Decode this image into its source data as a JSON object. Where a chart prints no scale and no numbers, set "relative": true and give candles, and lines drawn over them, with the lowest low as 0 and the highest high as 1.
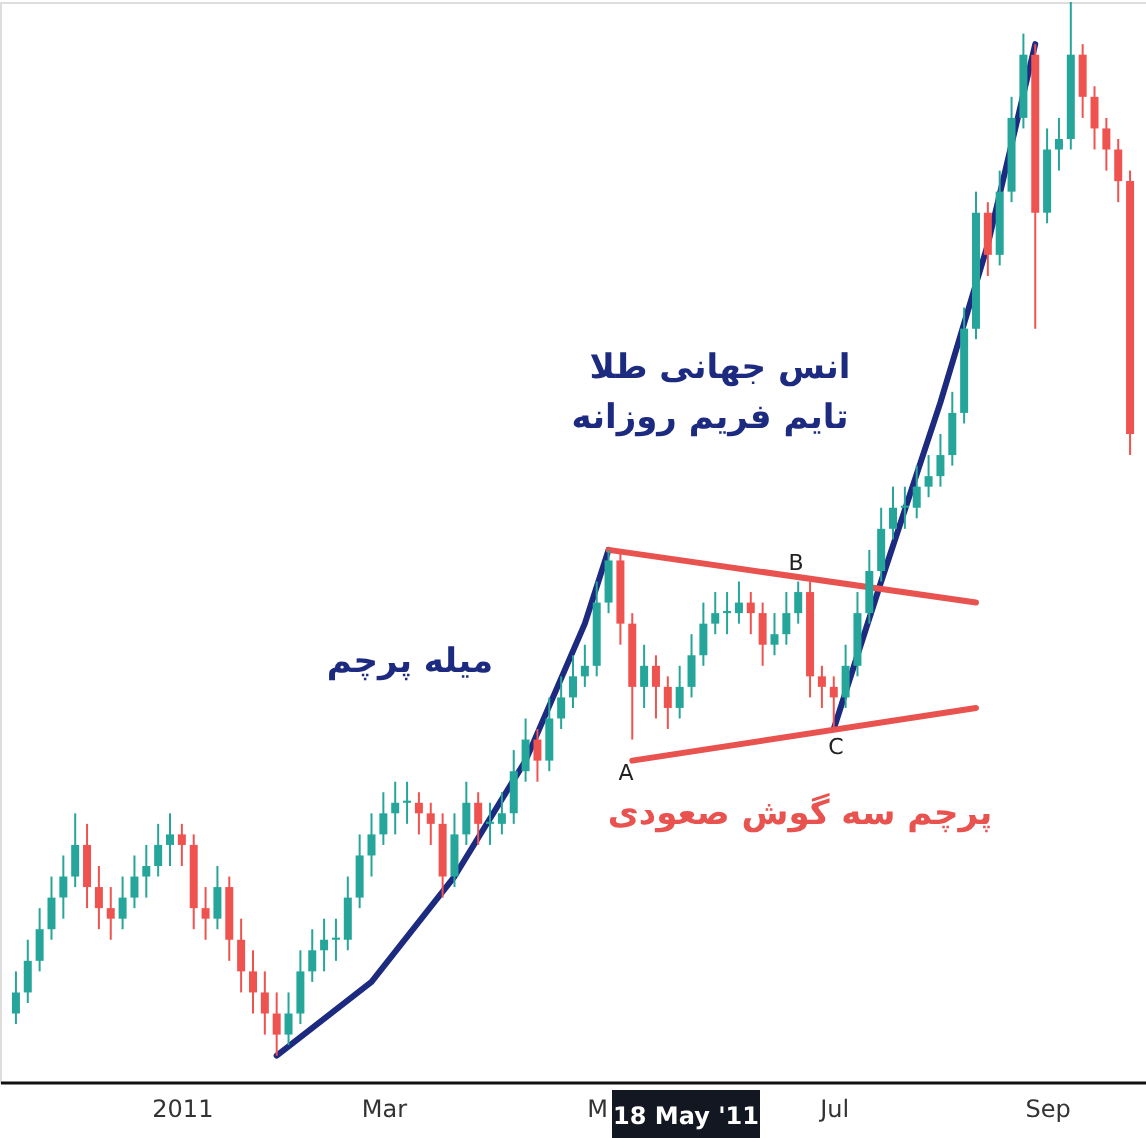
{
  "chart_data": {
    "type": "candlestick",
    "relative": true,
    "categories": [
      null,
      null,
      null,
      null,
      null,
      null,
      null,
      null,
      null,
      null,
      null,
      null,
      null,
      null,
      "2011",
      null,
      null,
      null,
      null,
      null,
      null,
      null,
      null,
      null,
      null,
      null,
      null,
      null,
      null,
      null,
      null,
      "Mar",
      null,
      null,
      null,
      null,
      null,
      null,
      null,
      null,
      null,
      null,
      null,
      null,
      null,
      null,
      null,
      null,
      null,
      "M",
      null,
      null,
      null,
      null,
      null,
      null,
      null,
      null,
      null,
      null,
      null,
      null,
      null,
      null,
      null,
      null,
      null,
      null,
      null,
      "Jul",
      null,
      null,
      null,
      null,
      null,
      null,
      null,
      null,
      null,
      null,
      null,
      null,
      null,
      null,
      null,
      null,
      null,
      "Sep",
      null,
      null,
      null,
      null,
      null,
      null,
      null
    ],
    "ohlc": [
      [
        0.04,
        0.08,
        0.03,
        0.06
      ],
      [
        0.06,
        0.11,
        0.05,
        0.09
      ],
      [
        0.09,
        0.14,
        0.08,
        0.12
      ],
      [
        0.12,
        0.17,
        0.11,
        0.15
      ],
      [
        0.15,
        0.19,
        0.13,
        0.17
      ],
      [
        0.17,
        0.23,
        0.16,
        0.2
      ],
      [
        0.2,
        0.22,
        0.14,
        0.16
      ],
      [
        0.16,
        0.18,
        0.12,
        0.14
      ],
      [
        0.14,
        0.16,
        0.11,
        0.13
      ],
      [
        0.13,
        0.17,
        0.12,
        0.15
      ],
      [
        0.15,
        0.19,
        0.14,
        0.17
      ],
      [
        0.17,
        0.2,
        0.15,
        0.18
      ],
      [
        0.18,
        0.22,
        0.17,
        0.2
      ],
      [
        0.2,
        0.23,
        0.18,
        0.21
      ],
      [
        0.21,
        0.22,
        0.18,
        0.2
      ],
      [
        0.2,
        0.21,
        0.12,
        0.14
      ],
      [
        0.14,
        0.16,
        0.11,
        0.13
      ],
      [
        0.13,
        0.18,
        0.12,
        0.16
      ],
      [
        0.16,
        0.17,
        0.09,
        0.11
      ],
      [
        0.11,
        0.13,
        0.06,
        0.08
      ],
      [
        0.08,
        0.1,
        0.04,
        0.06
      ],
      [
        0.06,
        0.08,
        0.02,
        0.04
      ],
      [
        0.04,
        0.06,
        0.0,
        0.02
      ],
      [
        0.02,
        0.06,
        0.01,
        0.04
      ],
      [
        0.04,
        0.1,
        0.03,
        0.08
      ],
      [
        0.08,
        0.12,
        0.07,
        0.1
      ],
      [
        0.1,
        0.13,
        0.08,
        0.11
      ],
      [
        0.11,
        0.13,
        0.09,
        0.11
      ],
      [
        0.11,
        0.17,
        0.1,
        0.15
      ],
      [
        0.15,
        0.21,
        0.14,
        0.19
      ],
      [
        0.19,
        0.23,
        0.17,
        0.21
      ],
      [
        0.21,
        0.25,
        0.2,
        0.23
      ],
      [
        0.23,
        0.26,
        0.21,
        0.24
      ],
      [
        0.24,
        0.26,
        0.22,
        0.24
      ],
      [
        0.24,
        0.25,
        0.21,
        0.23
      ],
      [
        0.23,
        0.24,
        0.2,
        0.22
      ],
      [
        0.22,
        0.23,
        0.15,
        0.17
      ],
      [
        0.17,
        0.23,
        0.16,
        0.21
      ],
      [
        0.21,
        0.26,
        0.2,
        0.24
      ],
      [
        0.24,
        0.25,
        0.2,
        0.22
      ],
      [
        0.22,
        0.24,
        0.2,
        0.22
      ],
      [
        0.22,
        0.25,
        0.21,
        0.23
      ],
      [
        0.23,
        0.29,
        0.22,
        0.27
      ],
      [
        0.27,
        0.32,
        0.26,
        0.3
      ],
      [
        0.3,
        0.31,
        0.26,
        0.28
      ],
      [
        0.28,
        0.34,
        0.27,
        0.32
      ],
      [
        0.32,
        0.36,
        0.31,
        0.34
      ],
      [
        0.34,
        0.38,
        0.33,
        0.36
      ],
      [
        0.36,
        0.39,
        0.35,
        0.37
      ],
      [
        0.37,
        0.45,
        0.36,
        0.43
      ],
      [
        0.43,
        0.48,
        0.42,
        0.47
      ],
      [
        0.47,
        0.48,
        0.39,
        0.41
      ],
      [
        0.41,
        0.42,
        0.3,
        0.35
      ],
      [
        0.35,
        0.39,
        0.33,
        0.37
      ],
      [
        0.37,
        0.38,
        0.32,
        0.35
      ],
      [
        0.35,
        0.36,
        0.31,
        0.33
      ],
      [
        0.33,
        0.37,
        0.32,
        0.35
      ],
      [
        0.35,
        0.4,
        0.34,
        0.38
      ],
      [
        0.38,
        0.43,
        0.37,
        0.41
      ],
      [
        0.41,
        0.44,
        0.4,
        0.42
      ],
      [
        0.42,
        0.44,
        0.4,
        0.42
      ],
      [
        0.42,
        0.45,
        0.41,
        0.43
      ],
      [
        0.43,
        0.44,
        0.4,
        0.42
      ],
      [
        0.42,
        0.43,
        0.37,
        0.39
      ],
      [
        0.39,
        0.42,
        0.38,
        0.4
      ],
      [
        0.4,
        0.44,
        0.39,
        0.42
      ],
      [
        0.42,
        0.45,
        0.41,
        0.44
      ],
      [
        0.44,
        0.45,
        0.34,
        0.36
      ],
      [
        0.36,
        0.37,
        0.33,
        0.35
      ],
      [
        0.35,
        0.36,
        0.31,
        0.34
      ],
      [
        0.34,
        0.39,
        0.33,
        0.37
      ],
      [
        0.37,
        0.44,
        0.36,
        0.42
      ],
      [
        0.42,
        0.48,
        0.41,
        0.46
      ],
      [
        0.46,
        0.52,
        0.45,
        0.5
      ],
      [
        0.5,
        0.54,
        0.49,
        0.52
      ],
      [
        0.52,
        0.54,
        0.5,
        0.52
      ],
      [
        0.52,
        0.56,
        0.51,
        0.54
      ],
      [
        0.54,
        0.57,
        0.53,
        0.55
      ],
      [
        0.55,
        0.59,
        0.54,
        0.57
      ],
      [
        0.57,
        0.63,
        0.56,
        0.61
      ],
      [
        0.61,
        0.71,
        0.6,
        0.69
      ],
      [
        0.69,
        0.82,
        0.68,
        0.8
      ],
      [
        0.8,
        0.81,
        0.74,
        0.76
      ],
      [
        0.76,
        0.84,
        0.75,
        0.82
      ],
      [
        0.82,
        0.91,
        0.81,
        0.89
      ],
      [
        0.89,
        0.97,
        0.88,
        0.95
      ],
      [
        0.95,
        0.96,
        0.69,
        0.8
      ],
      [
        0.8,
        0.88,
        0.79,
        0.86
      ],
      [
        0.86,
        0.89,
        0.84,
        0.87
      ],
      [
        0.87,
        1.0,
        0.86,
        0.95
      ],
      [
        0.95,
        0.96,
        0.89,
        0.91
      ],
      [
        0.91,
        0.92,
        0.86,
        0.88
      ],
      [
        0.88,
        0.89,
        0.84,
        0.86
      ],
      [
        0.86,
        0.87,
        0.81,
        0.83
      ],
      [
        0.83,
        0.84,
        0.57,
        0.59
      ]
    ],
    "series": [
      {
        "type": "line",
        "color": "#1c2a80",
        "values": [
          null,
          null,
          null,
          null,
          null,
          null,
          null,
          null,
          null,
          null,
          null,
          null,
          null,
          null,
          null,
          null,
          null,
          null,
          null,
          null,
          null,
          null,
          0.0,
          null,
          null,
          null,
          null,
          null,
          null,
          null,
          0.07,
          null,
          null,
          null,
          null,
          null,
          null,
          0.17,
          null,
          null,
          null,
          null,
          null,
          0.28,
          null,
          null,
          null,
          null,
          0.41,
          null,
          0.48,
          null,
          null,
          null,
          null,
          null,
          null,
          null,
          null,
          null,
          null,
          null,
          null,
          null,
          null,
          null,
          null,
          null,
          null,
          null,
          null,
          null,
          null,
          null,
          null,
          null,
          null,
          null,
          null,
          null,
          null,
          null,
          null,
          null,
          null,
          null,
          null,
          null,
          null,
          null,
          null,
          null,
          null,
          null,
          null
        ]
      },
      {
        "type": "line",
        "color": "#1c2a80",
        "values": [
          null,
          null,
          null,
          null,
          null,
          null,
          null,
          null,
          null,
          null,
          null,
          null,
          null,
          null,
          null,
          null,
          null,
          null,
          null,
          null,
          null,
          null,
          null,
          null,
          null,
          null,
          null,
          null,
          null,
          null,
          null,
          null,
          null,
          null,
          null,
          null,
          null,
          null,
          null,
          null,
          null,
          null,
          null,
          null,
          null,
          null,
          null,
          null,
          null,
          null,
          null,
          null,
          null,
          null,
          null,
          null,
          null,
          null,
          null,
          null,
          null,
          null,
          null,
          null,
          null,
          null,
          null,
          null,
          null,
          0.31,
          null,
          null,
          null,
          0.45,
          null,
          null,
          null,
          null,
          0.62,
          null,
          null,
          null,
          0.77,
          null,
          null,
          null,
          0.96,
          null,
          null,
          null,
          null,
          null,
          null,
          null,
          null
        ]
      },
      {
        "type": "line",
        "color": "#e8524f",
        "values": [
          null,
          null,
          null,
          null,
          null,
          null,
          null,
          null,
          null,
          null,
          null,
          null,
          null,
          null,
          null,
          null,
          null,
          null,
          null,
          null,
          null,
          null,
          null,
          null,
          null,
          null,
          null,
          null,
          null,
          null,
          null,
          null,
          null,
          null,
          null,
          null,
          null,
          null,
          null,
          null,
          null,
          null,
          null,
          null,
          null,
          null,
          null,
          null,
          null,
          null,
          0.48,
          null,
          null,
          null,
          null,
          null,
          null,
          null,
          null,
          null,
          null,
          null,
          null,
          null,
          null,
          null,
          null,
          null,
          null,
          null,
          null,
          null,
          null,
          null,
          null,
          null,
          null,
          null,
          null,
          null,
          null,
          0.43,
          null,
          null,
          null,
          null,
          null,
          null,
          null,
          null,
          null,
          null,
          null,
          null,
          null
        ]
      },
      {
        "type": "line",
        "color": "#e8524f",
        "values": [
          null,
          null,
          null,
          null,
          null,
          null,
          null,
          null,
          null,
          null,
          null,
          null,
          null,
          null,
          null,
          null,
          null,
          null,
          null,
          null,
          null,
          null,
          null,
          null,
          null,
          null,
          null,
          null,
          null,
          null,
          null,
          null,
          null,
          null,
          null,
          null,
          null,
          null,
          null,
          null,
          null,
          null,
          null,
          null,
          null,
          null,
          null,
          null,
          null,
          null,
          null,
          null,
          0.28,
          null,
          null,
          null,
          null,
          null,
          null,
          null,
          null,
          null,
          null,
          null,
          null,
          null,
          null,
          null,
          null,
          null,
          null,
          null,
          null,
          null,
          null,
          null,
          null,
          null,
          null,
          null,
          null,
          0.33,
          null,
          null,
          null,
          null,
          null,
          null,
          null,
          null,
          null,
          null,
          null,
          null,
          null
        ]
      }
    ],
    "annotations": [
      "انس جهانی طلا",
      "تایم فریم روزانه",
      "میله پرچم",
      "پرچم سه گوش صعودی",
      "A",
      "B",
      "C",
      "18 May '11"
    ]
  }
}
